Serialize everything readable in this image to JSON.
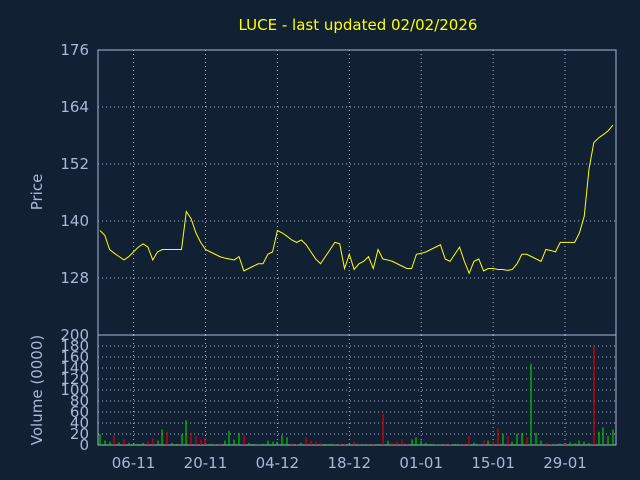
{
  "chart_data": [
    {
      "type": "line",
      "title": "LUCE - last updated 02/02/2026",
      "ylabel": "Price",
      "xlabel": "",
      "ylim": [
        116,
        176
      ],
      "yticks": [
        128,
        140,
        152,
        164,
        176
      ],
      "xticks": [
        "06-11",
        "20-11",
        "04-12",
        "18-12",
        "01-01",
        "15-01",
        "29-01"
      ],
      "grid": true,
      "series": [
        {
          "values": [
            138.0,
            137.0,
            134.0,
            133.2,
            132.5,
            131.8,
            132.5,
            133.5,
            134.5,
            135.2,
            134.5,
            131.8,
            133.5,
            134.0,
            134.0,
            134.0,
            134.0,
            134.0,
            142.0,
            140.5,
            137.5,
            135.5,
            134.0,
            133.5,
            133.0,
            132.5,
            132.2,
            132.0,
            131.8,
            132.5,
            129.5,
            130.0,
            130.5,
            131.0,
            131.0,
            133.0,
            133.5,
            138.0,
            137.5,
            136.8,
            136.0,
            135.5,
            136.0,
            135.0,
            133.5,
            132.0,
            131.0,
            132.5,
            134.0,
            135.5,
            135.2,
            130.0,
            133.0,
            129.8,
            131.0,
            131.5,
            132.5,
            130.0,
            134.0,
            132.0,
            131.8,
            131.5,
            131.0,
            130.5,
            130.0,
            130.0,
            133.0,
            133.2,
            133.5,
            134.0,
            134.5,
            135.0,
            132.0,
            131.5,
            133.0,
            134.5,
            131.5,
            129.0,
            131.5,
            132.0,
            129.5,
            130.0,
            130.0,
            129.8,
            129.8,
            129.6,
            129.8,
            131.0,
            133.0,
            133.0,
            132.5,
            132.0,
            131.5,
            134.0,
            133.8,
            133.5,
            135.5,
            135.5,
            135.5,
            135.5,
            137.5,
            141.0,
            151.0,
            156.5,
            157.5,
            158.2,
            159.0,
            160.2
          ]
        }
      ]
    },
    {
      "type": "bar",
      "ylabel": "Volume (0000)",
      "ylim": [
        0,
        200
      ],
      "yticks": [
        0,
        20,
        40,
        60,
        80,
        100,
        120,
        140,
        160,
        180,
        200
      ],
      "grid": true,
      "colors": {
        "up": "#00cc00",
        "down": "#dd0000"
      },
      "series": [
        {
          "values": [
            20,
            8,
            6,
            18,
            5,
            10,
            4,
            3,
            2,
            4,
            6,
            12,
            8,
            28,
            24,
            4,
            2,
            20,
            45,
            22,
            16,
            10,
            14,
            2,
            1,
            3,
            8,
            26,
            10,
            22,
            18,
            4,
            2,
            1,
            2,
            8,
            6,
            6,
            18,
            14,
            3,
            1,
            4,
            14,
            8,
            6,
            4,
            2,
            2,
            1,
            1,
            2,
            2,
            6,
            1,
            1,
            1,
            2,
            2,
            56,
            8,
            4,
            6,
            10,
            2,
            10,
            14,
            8,
            4,
            2,
            1,
            1,
            2,
            1,
            2,
            1,
            2,
            16,
            4,
            1,
            8,
            8,
            6,
            30,
            20,
            16,
            6,
            20,
            22,
            14,
            148,
            22,
            8,
            4,
            2,
            1,
            3,
            2,
            5,
            3,
            8,
            6,
            4,
            182,
            24,
            32,
            16,
            28
          ],
          "up": [
            1,
            1,
            1,
            0,
            1,
            0,
            1,
            1,
            1,
            1,
            0,
            0,
            1,
            1,
            0,
            1,
            1,
            1,
            1,
            0,
            0,
            0,
            0,
            1,
            1,
            0,
            1,
            1,
            1,
            1,
            0,
            1,
            1,
            1,
            1,
            1,
            1,
            1,
            1,
            1,
            0,
            0,
            1,
            0,
            0,
            0,
            0,
            1,
            1,
            1,
            0,
            0,
            1,
            0,
            1,
            1,
            1,
            0,
            1,
            0,
            1,
            0,
            0,
            0,
            0,
            1,
            1,
            1,
            1,
            1,
            1,
            1,
            0,
            0,
            1,
            1,
            0,
            0,
            1,
            1,
            0,
            1,
            0,
            0,
            1,
            0,
            1,
            1,
            1,
            0,
            1,
            1,
            1,
            0,
            0,
            1,
            1,
            0,
            1,
            1,
            1,
            1,
            1,
            0,
            1,
            1,
            1,
            1
          ]
        }
      ]
    }
  ]
}
